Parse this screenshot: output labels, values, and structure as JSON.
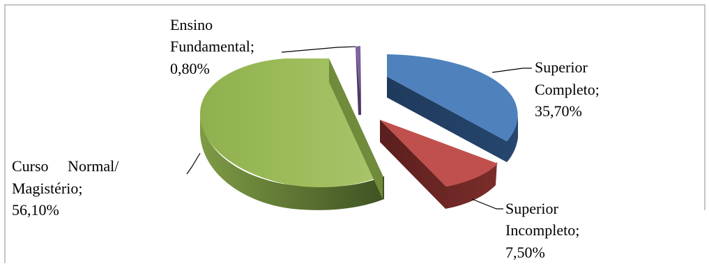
{
  "chart_data": {
    "type": "pie",
    "title": "",
    "style": "3d-exploded",
    "slices": [
      {
        "label": "Ensino Fundamental",
        "value": 0.8,
        "display": "0,80%",
        "label_lines": [
          "Ensino",
          "Fundamental;",
          "0,80%"
        ],
        "color": "#8064a2",
        "side_color": "#4b3864"
      },
      {
        "label": "Superior Completo",
        "value": 35.7,
        "display": "35,70%",
        "label_lines": [
          "Superior",
          "Completo;",
          "35,70%"
        ],
        "color": "#4f81bd",
        "side_color": "#2a4466"
      },
      {
        "label": "Superior Incompleto",
        "value": 7.5,
        "display": "7,50%",
        "label_lines": [
          "Superior",
          "Incompleto;",
          "7,50%"
        ],
        "color": "#c0504d",
        "side_color": "#6e2826"
      },
      {
        "label": "Curso Normal/ Magistério",
        "value": 56.1,
        "display": "56,10%",
        "label_lines": [
          "Curso     Normal/",
          "Magistério;",
          "56,10%"
        ],
        "color": "#9bbb59",
        "side_color": "#5d7431"
      }
    ]
  }
}
